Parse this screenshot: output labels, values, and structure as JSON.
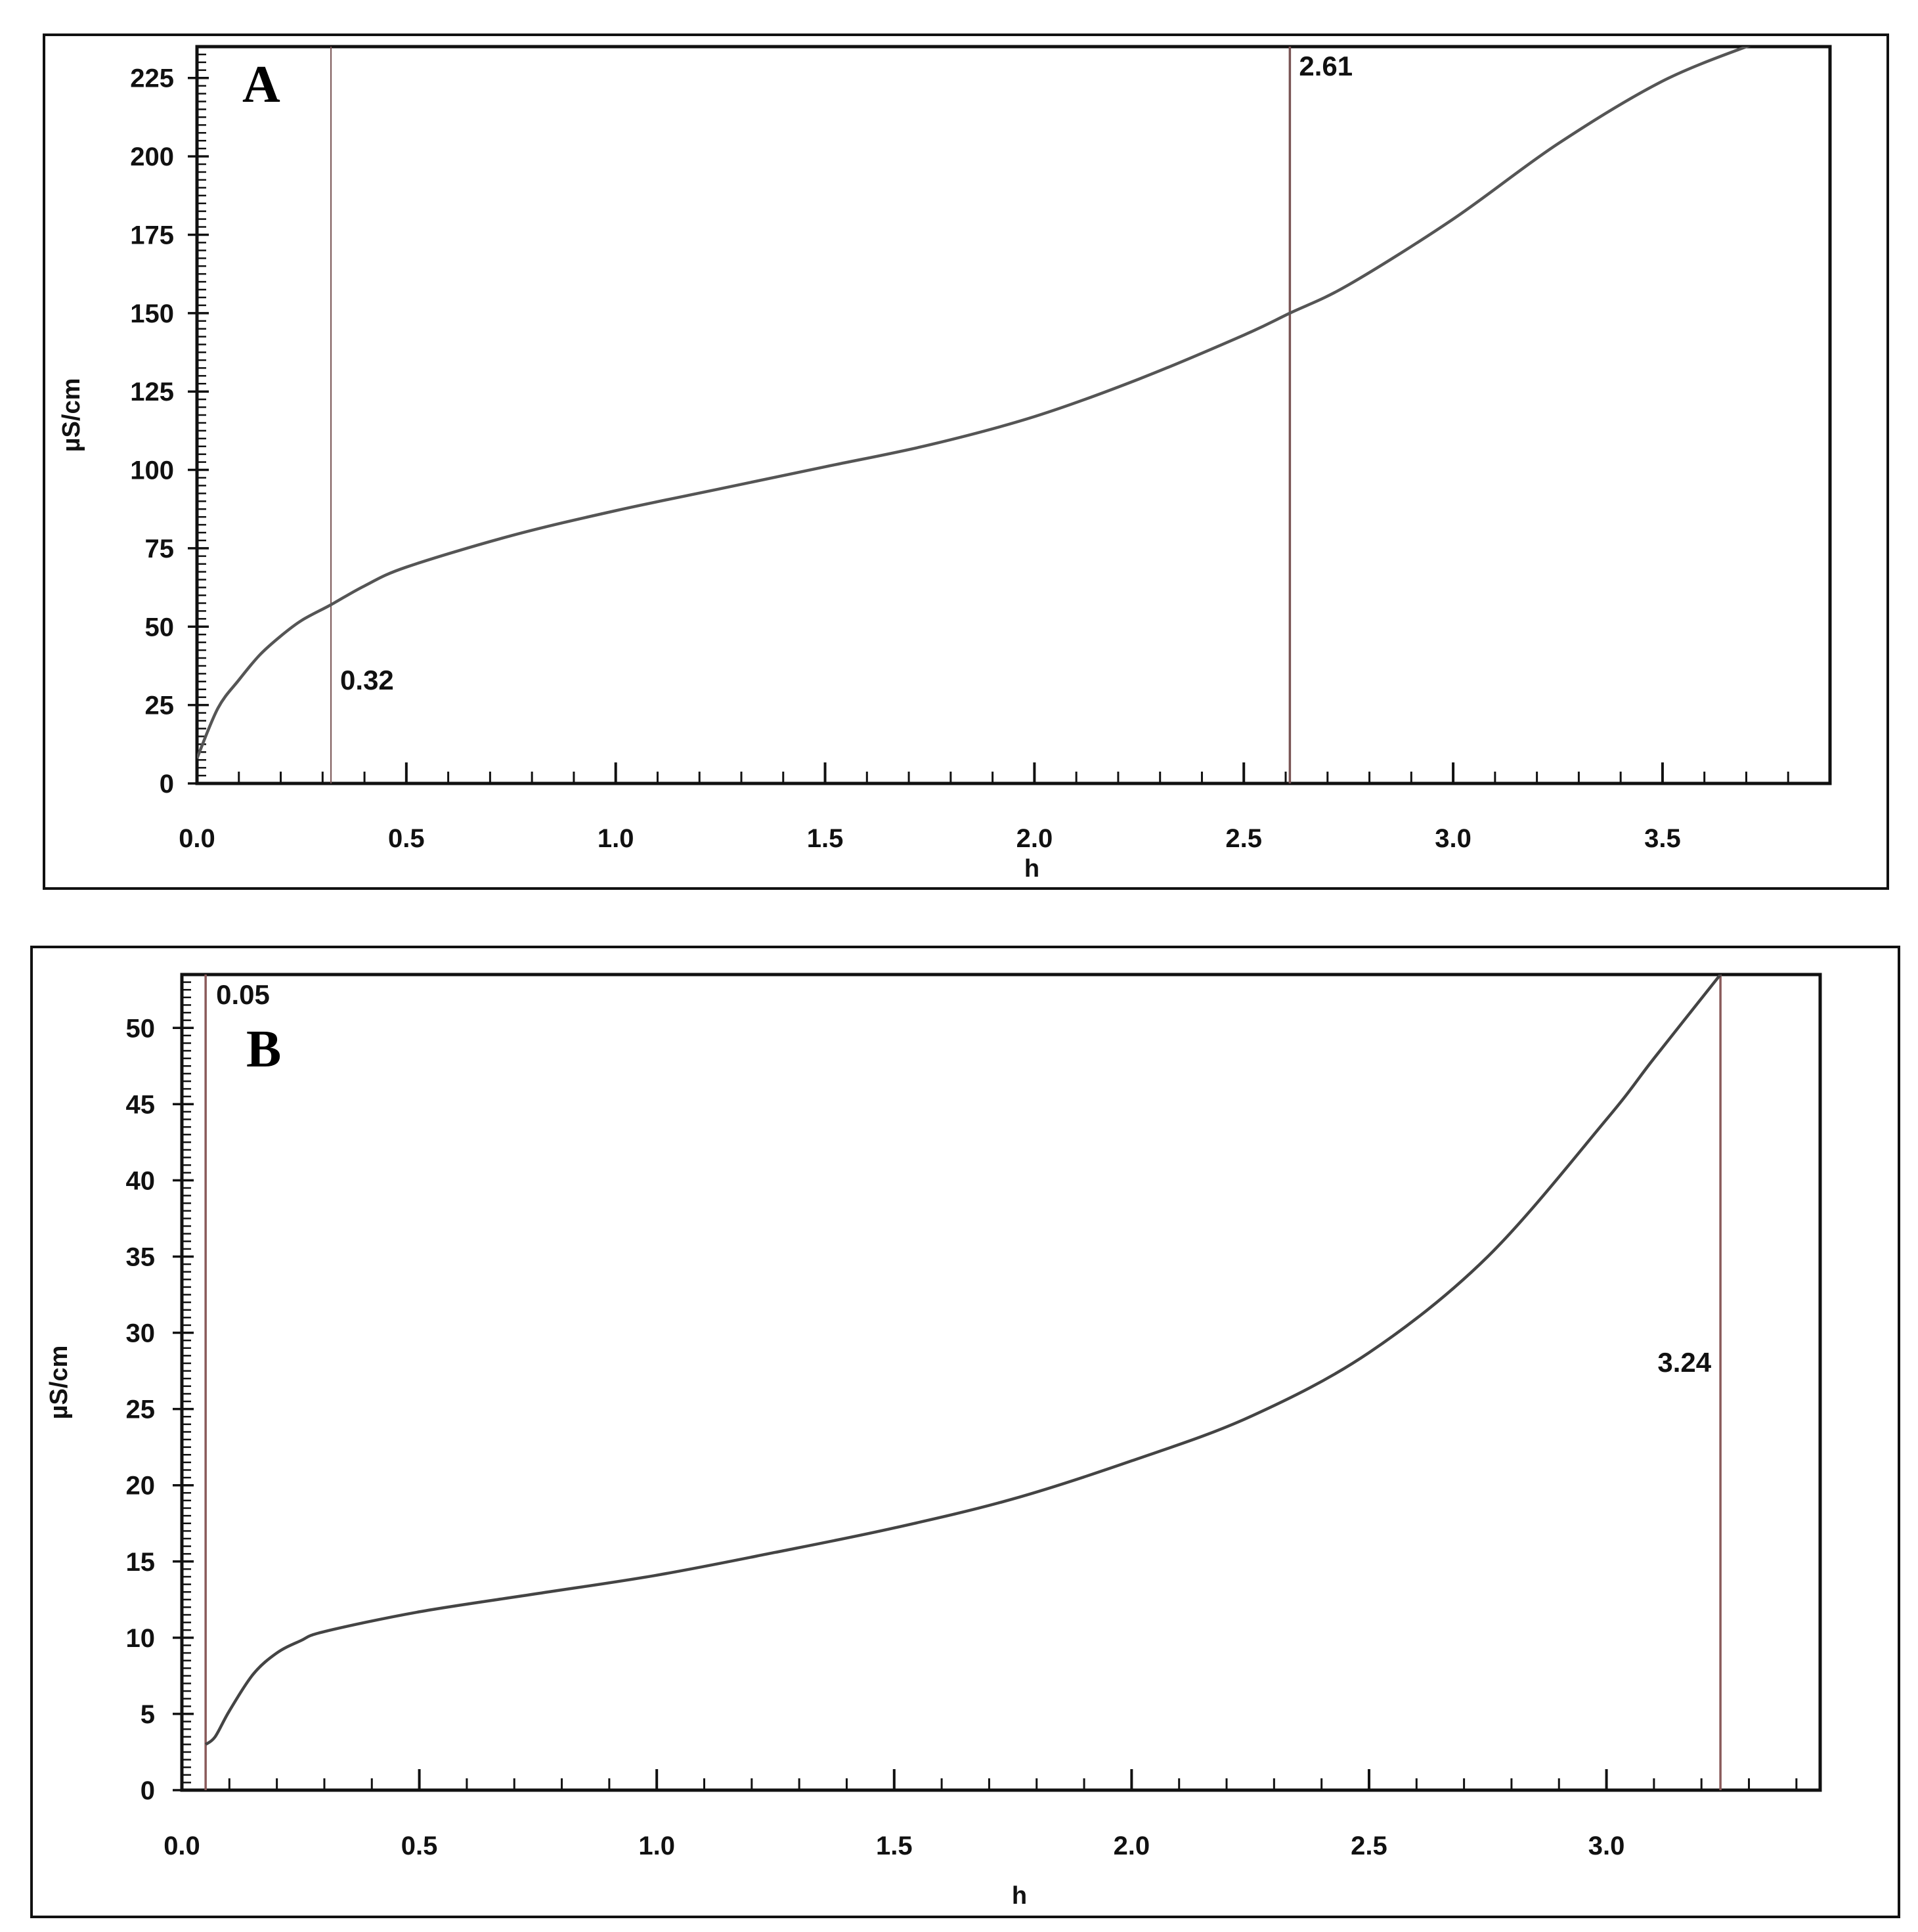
{
  "chart_data": [
    {
      "type": "line",
      "panel_label": "A",
      "xlabel": "h",
      "ylabel": "µS/cm",
      "xlim": [
        0.0,
        3.9
      ],
      "ylim": [
        0,
        235
      ],
      "x_ticks": [
        "0.0",
        "0.5",
        "1.0",
        "1.5",
        "2.0",
        "2.5",
        "3.0",
        "3.5"
      ],
      "y_ticks": [
        "0",
        "25",
        "50",
        "75",
        "100",
        "125",
        "150",
        "175",
        "200",
        "225"
      ],
      "series": [
        {
          "x": [
            0.0,
            0.05,
            0.1,
            0.15,
            0.2,
            0.25,
            0.32,
            0.4,
            0.5,
            0.75,
            1.0,
            1.25,
            1.5,
            1.75,
            2.0,
            2.25,
            2.5,
            2.61,
            2.75,
            3.0,
            3.25,
            3.5,
            3.72
          ],
          "y": [
            8,
            24,
            33,
            41,
            47,
            52,
            57,
            63,
            69,
            79,
            87,
            94,
            101,
            108,
            117,
            129,
            143,
            150,
            159,
            180,
            204,
            224,
            236
          ]
        }
      ],
      "markers": [
        {
          "x": 0.32,
          "label": "0.32"
        },
        {
          "x": 2.61,
          "label": "2.61"
        }
      ],
      "colors": {
        "line": "#555555",
        "axis": "#111111",
        "marker_line": "#7a5555"
      }
    },
    {
      "type": "line",
      "panel_label": "B",
      "xlabel": "h",
      "ylabel": "µS/cm",
      "xlim": [
        0.0,
        3.45
      ],
      "ylim": [
        0,
        53.5
      ],
      "x_ticks": [
        "0.0",
        "0.5",
        "1.0",
        "1.5",
        "2.0",
        "2.5",
        "3.0"
      ],
      "y_ticks": [
        "0",
        "5",
        "10",
        "15",
        "20",
        "25",
        "30",
        "35",
        "40",
        "45",
        "50"
      ],
      "series": [
        {
          "x": [
            0.05,
            0.07,
            0.1,
            0.15,
            0.2,
            0.25,
            0.3,
            0.5,
            0.75,
            1.0,
            1.25,
            1.5,
            1.75,
            2.0,
            2.25,
            2.5,
            2.75,
            3.0,
            3.1,
            3.24
          ],
          "y": [
            3,
            3.5,
            5.2,
            7.6,
            9.0,
            9.8,
            10.4,
            11.7,
            12.9,
            14.1,
            15.6,
            17.2,
            19.1,
            21.6,
            24.5,
            28.7,
            35,
            44,
            48,
            53.5
          ]
        }
      ],
      "markers": [
        {
          "x": 0.05,
          "label": "0.05"
        },
        {
          "x": 3.24,
          "label": "3.24"
        }
      ],
      "colors": {
        "line": "#444444",
        "axis": "#111111",
        "marker_line": "#8a5a5a"
      }
    }
  ]
}
